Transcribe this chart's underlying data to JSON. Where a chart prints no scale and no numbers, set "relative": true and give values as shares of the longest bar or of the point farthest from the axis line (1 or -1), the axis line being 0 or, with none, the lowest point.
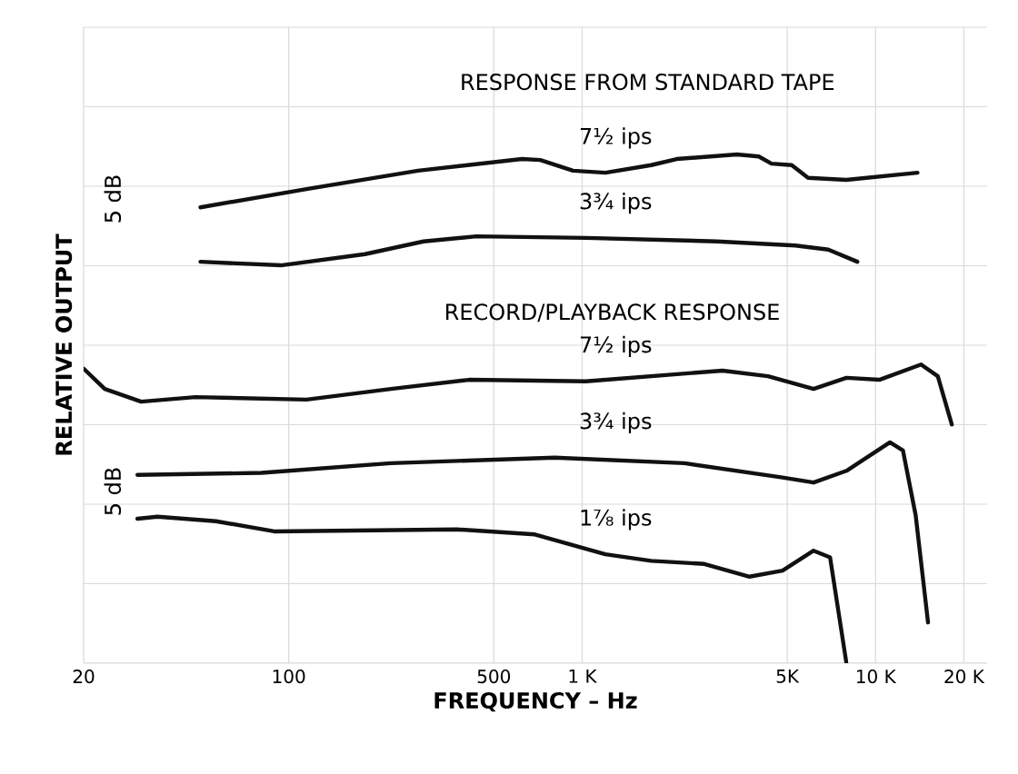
{
  "chart_data": {
    "type": "line",
    "relative": true,
    "log": "x",
    "grid": true,
    "xlabel": "FREQUENCY – Hz",
    "ylabel": "RELATIVE OUTPUT",
    "xlim": [
      20,
      24000
    ],
    "xticks": [
      20,
      100,
      500,
      {
        "value": 1000,
        "label": "1 K"
      },
      {
        "value": 5000,
        "label": "5K"
      },
      {
        "value": 10000,
        "label": "10 K"
      },
      {
        "value": 20000,
        "label": "20 K"
      }
    ],
    "annotations": [
      "RESPONSE FROM STANDARD TAPE",
      "RECORD/PLAYBACK RESPONSE",
      "5 dB",
      "5 dB"
    ],
    "series": [
      {
        "name": "7½ ips",
        "color": "#111111",
        "x": [
          50,
          115,
          276,
          624,
          720,
          931,
          1200,
          1720,
          2100,
          3370,
          4000,
          4420,
          5180,
          5890,
          7960,
          13900
        ],
        "values": [
          0.896,
          0.932,
          0.968,
          0.991,
          0.989,
          0.968,
          0.964,
          0.979,
          0.991,
          1.0,
          0.996,
          0.982,
          0.979,
          0.954,
          0.95,
          0.964
        ]
      },
      {
        "name": "3¾ ips",
        "color": "#111111",
        "x": [
          50,
          94,
          182,
          288,
          436,
          1030,
          2880,
          5330,
          6900,
          8670
        ],
        "values": [
          0.789,
          0.782,
          0.804,
          0.829,
          0.839,
          0.836,
          0.829,
          0.821,
          0.813,
          0.789
        ]
      },
      {
        "name": "7½ ips",
        "color": "#111111",
        "x": [
          20,
          23.6,
          31.4,
          48,
          115,
          223,
          412,
          1030,
          3010,
          4300,
          6150,
          7960,
          10300,
          14300,
          16300,
          18200
        ],
        "values": [
          0.579,
          0.539,
          0.514,
          0.523,
          0.518,
          0.539,
          0.557,
          0.554,
          0.575,
          0.564,
          0.539,
          0.561,
          0.557,
          0.587,
          0.564,
          0.469
        ]
      },
      {
        "name": "3¾ ips",
        "color": "#111111",
        "x": [
          30.5,
          80.7,
          223,
          807,
          2230,
          4820,
          6150,
          7960,
          11200,
          12400,
          13700,
          15100
        ],
        "values": [
          0.37,
          0.374,
          0.393,
          0.404,
          0.393,
          0.365,
          0.355,
          0.378,
          0.434,
          0.418,
          0.291,
          0.08
        ]
      },
      {
        "name": "1⅞ ips",
        "color": "#111111",
        "x": [
          30.5,
          35.7,
          56.5,
          89.2,
          373,
          690,
          1200,
          1720,
          2610,
          3720,
          4820,
          6150,
          7000,
          7960
        ],
        "values": [
          0.284,
          0.288,
          0.279,
          0.259,
          0.263,
          0.253,
          0.214,
          0.201,
          0.195,
          0.17,
          0.182,
          0.221,
          0.208,
          0.0
        ]
      }
    ]
  }
}
